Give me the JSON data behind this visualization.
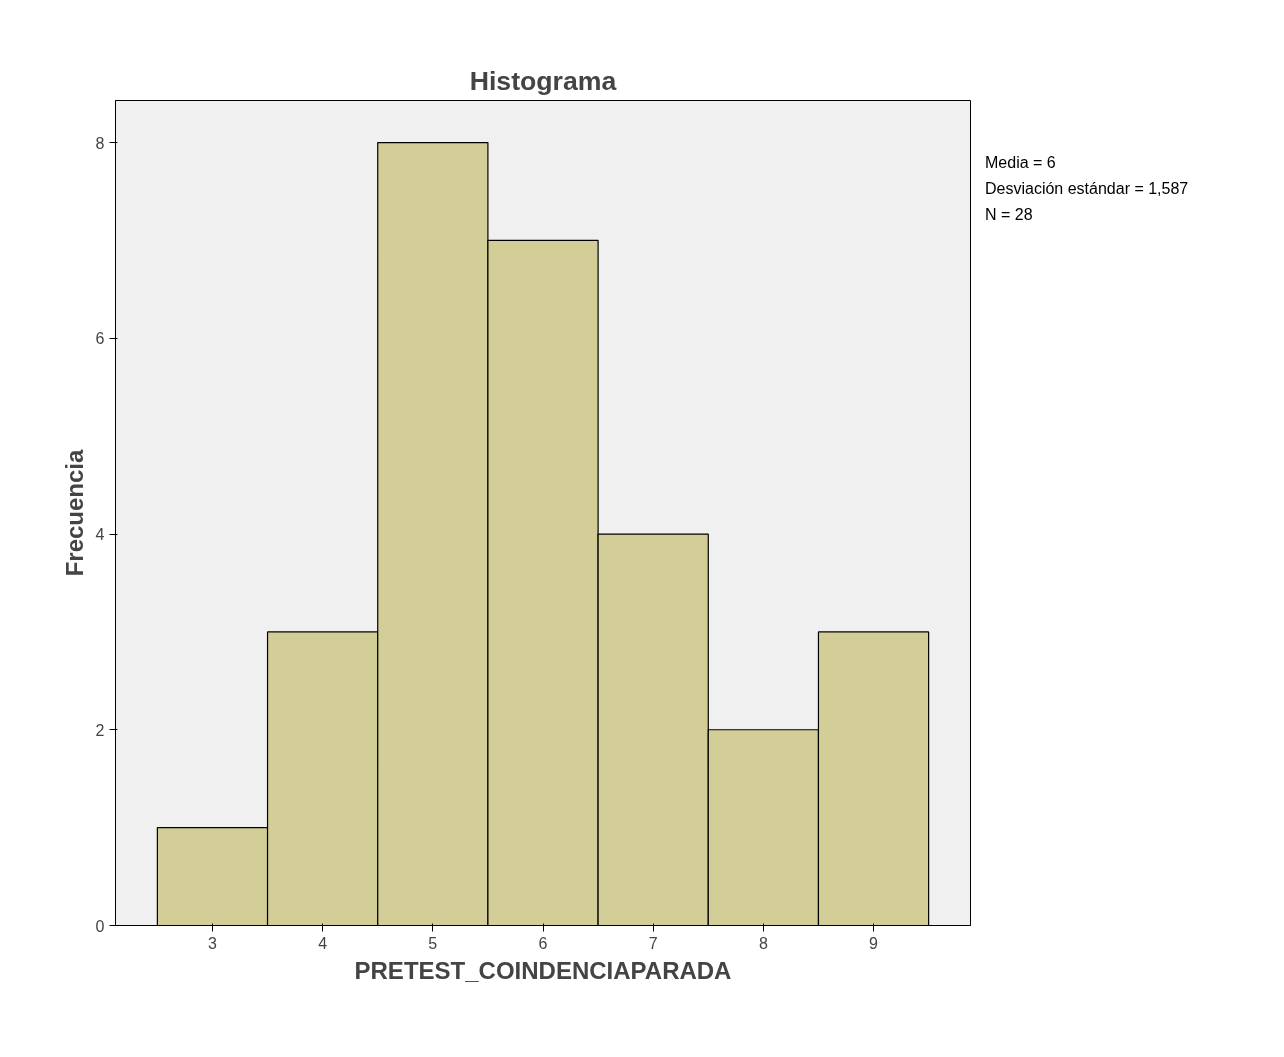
{
  "chart_data": {
    "type": "histogram",
    "title": "Histograma",
    "xlabel": "PRETEST_COINDENCIAPARADA",
    "ylabel": "Frecuencia",
    "bins": [
      2.5,
      3.5,
      4.5,
      5.5,
      6.5,
      7.5,
      8.5,
      9.5
    ],
    "values": [
      1,
      3,
      8,
      7,
      4,
      2,
      3
    ],
    "color": "#d3ce97",
    "xlim": [
      2.12,
      9.88
    ],
    "ylim": [
      0,
      8.43
    ],
    "xticks": [
      3,
      4,
      5,
      6,
      7,
      8,
      9
    ],
    "yticks": [
      0,
      2,
      4,
      6,
      8
    ],
    "grid": false,
    "annotations": [
      "Media = 6",
      "Desviación estándar = 1,587",
      "N = 28"
    ]
  }
}
